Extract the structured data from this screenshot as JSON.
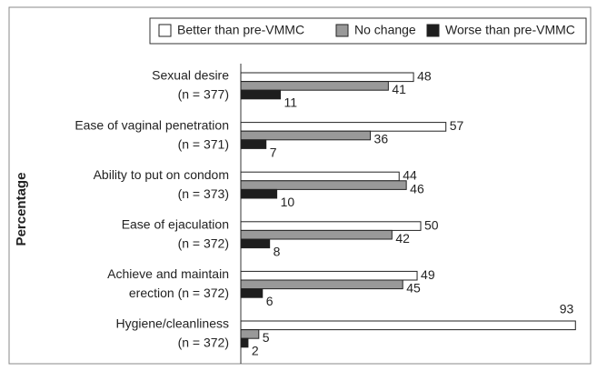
{
  "chart_data": {
    "type": "bar",
    "orientation": "horizontal",
    "y_label": "Percentage",
    "categories": [
      [
        "Sexual desire",
        "(n = 377)"
      ],
      [
        "Ease of vaginal penetration",
        "(n = 371)"
      ],
      [
        "Ability to put on condom",
        "(n = 373)"
      ],
      [
        "Ease of ejaculation",
        "(n = 372)"
      ],
      [
        "Achieve and maintain",
        "erection (n = 372)"
      ],
      [
        "Hygiene/cleanliness",
        "(n = 372)"
      ]
    ],
    "series": [
      {
        "name": "Better than pre-VMMC",
        "color": "#ffffff",
        "values": [
          48,
          57,
          44,
          50,
          49,
          93
        ]
      },
      {
        "name": "No change",
        "color": "#999999",
        "values": [
          41,
          36,
          46,
          42,
          45,
          5
        ]
      },
      {
        "name": "Worse than pre-VMMC",
        "color": "#1e1e1e",
        "values": [
          11,
          7,
          10,
          8,
          6,
          2
        ]
      }
    ]
  }
}
